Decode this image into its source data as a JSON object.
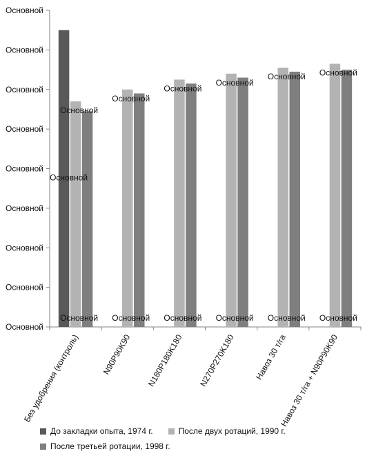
{
  "chart_data": {
    "type": "bar",
    "y_tick_labels": [
      "Основной",
      "Основной",
      "Основной",
      "Основной",
      "Основной",
      "Основной",
      "Основной",
      "Основной",
      "Основной"
    ],
    "ylim": [
      0,
      8
    ],
    "grid": false,
    "legend_position": "bottom",
    "categories": [
      "Без удобрения (контроль)",
      "N90P90K90",
      "N180P180K180",
      "N270P270K180",
      "Навоз 30 т/га",
      "Навоз 30 т/га + N90P90K90"
    ],
    "series": [
      {
        "name": "До закладки опыта, 1974 г.",
        "color": "#595959",
        "values": [
          7.5,
          null,
          null,
          null,
          null,
          null
        ]
      },
      {
        "name": "После двух ротаций, 1990 г.",
        "color": "#b3b3b3",
        "values": [
          5.7,
          6.0,
          6.25,
          6.4,
          6.55,
          6.65
        ]
      },
      {
        "name": "После третьей ротации, 1998 г.",
        "color": "#7f7f7f",
        "values": [
          5.45,
          5.9,
          6.15,
          6.3,
          6.45,
          6.5
        ]
      }
    ],
    "data_labels": [
      {
        "series": 1,
        "category": 0,
        "position": "above",
        "text": "Основной"
      },
      {
        "series": 1,
        "category": 0,
        "position": "low",
        "text": "Основной"
      },
      {
        "series": 1,
        "category": 1,
        "position": "above",
        "text": "Основной"
      },
      {
        "series": 1,
        "category": 2,
        "position": "above",
        "text": "Основной"
      },
      {
        "series": 1,
        "category": 3,
        "position": "above",
        "text": "Основной"
      },
      {
        "series": 1,
        "category": 4,
        "position": "above",
        "text": "Основной"
      },
      {
        "series": 1,
        "category": 5,
        "position": "above",
        "text": "Основной"
      },
      {
        "series": 1,
        "category": 0,
        "position": "base",
        "text": "Основной"
      },
      {
        "series": 1,
        "category": 1,
        "position": "base",
        "text": "Основной"
      },
      {
        "series": 1,
        "category": 2,
        "position": "base",
        "text": "Основной"
      },
      {
        "series": 1,
        "category": 3,
        "position": "base",
        "text": "Основной"
      },
      {
        "series": 1,
        "category": 4,
        "position": "base",
        "text": "Основной"
      },
      {
        "series": 1,
        "category": 5,
        "position": "base",
        "text": "Основной"
      }
    ]
  }
}
